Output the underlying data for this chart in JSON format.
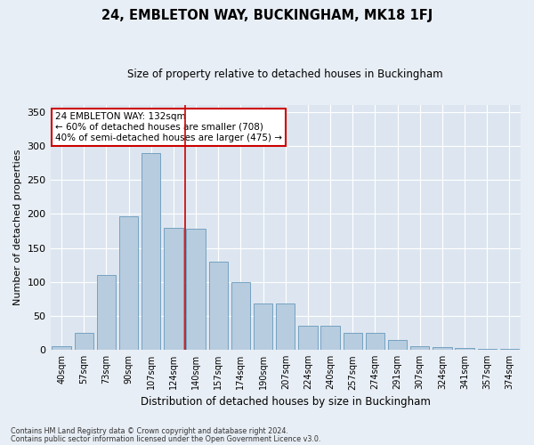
{
  "title1": "24, EMBLETON WAY, BUCKINGHAM, MK18 1FJ",
  "title2": "Size of property relative to detached houses in Buckingham",
  "xlabel": "Distribution of detached houses by size in Buckingham",
  "ylabel": "Number of detached properties",
  "categories": [
    "40sqm",
    "57sqm",
    "73sqm",
    "90sqm",
    "107sqm",
    "124sqm",
    "140sqm",
    "157sqm",
    "174sqm",
    "190sqm",
    "207sqm",
    "224sqm",
    "240sqm",
    "257sqm",
    "274sqm",
    "291sqm",
    "307sqm",
    "324sqm",
    "341sqm",
    "357sqm",
    "374sqm"
  ],
  "values": [
    5,
    25,
    110,
    197,
    290,
    180,
    178,
    130,
    100,
    68,
    68,
    35,
    35,
    25,
    25,
    15,
    6,
    4,
    3,
    2,
    2
  ],
  "bar_color": "#b8ccdf",
  "bar_edge_color": "#6699bb",
  "vline_index": 5,
  "vline_color": "#cc0000",
  "annotation_text": "24 EMBLETON WAY: 132sqm\n← 60% of detached houses are smaller (708)\n40% of semi-detached houses are larger (475) →",
  "annotation_box_color": "#ffffff",
  "annotation_box_edge": "#cc0000",
  "ylim": [
    0,
    360
  ],
  "yticks": [
    0,
    50,
    100,
    150,
    200,
    250,
    300,
    350
  ],
  "footer1": "Contains HM Land Registry data © Crown copyright and database right 2024.",
  "footer2": "Contains public sector information licensed under the Open Government Licence v3.0.",
  "bg_color": "#e8eef5",
  "plot_bg_color": "#dde6f0"
}
